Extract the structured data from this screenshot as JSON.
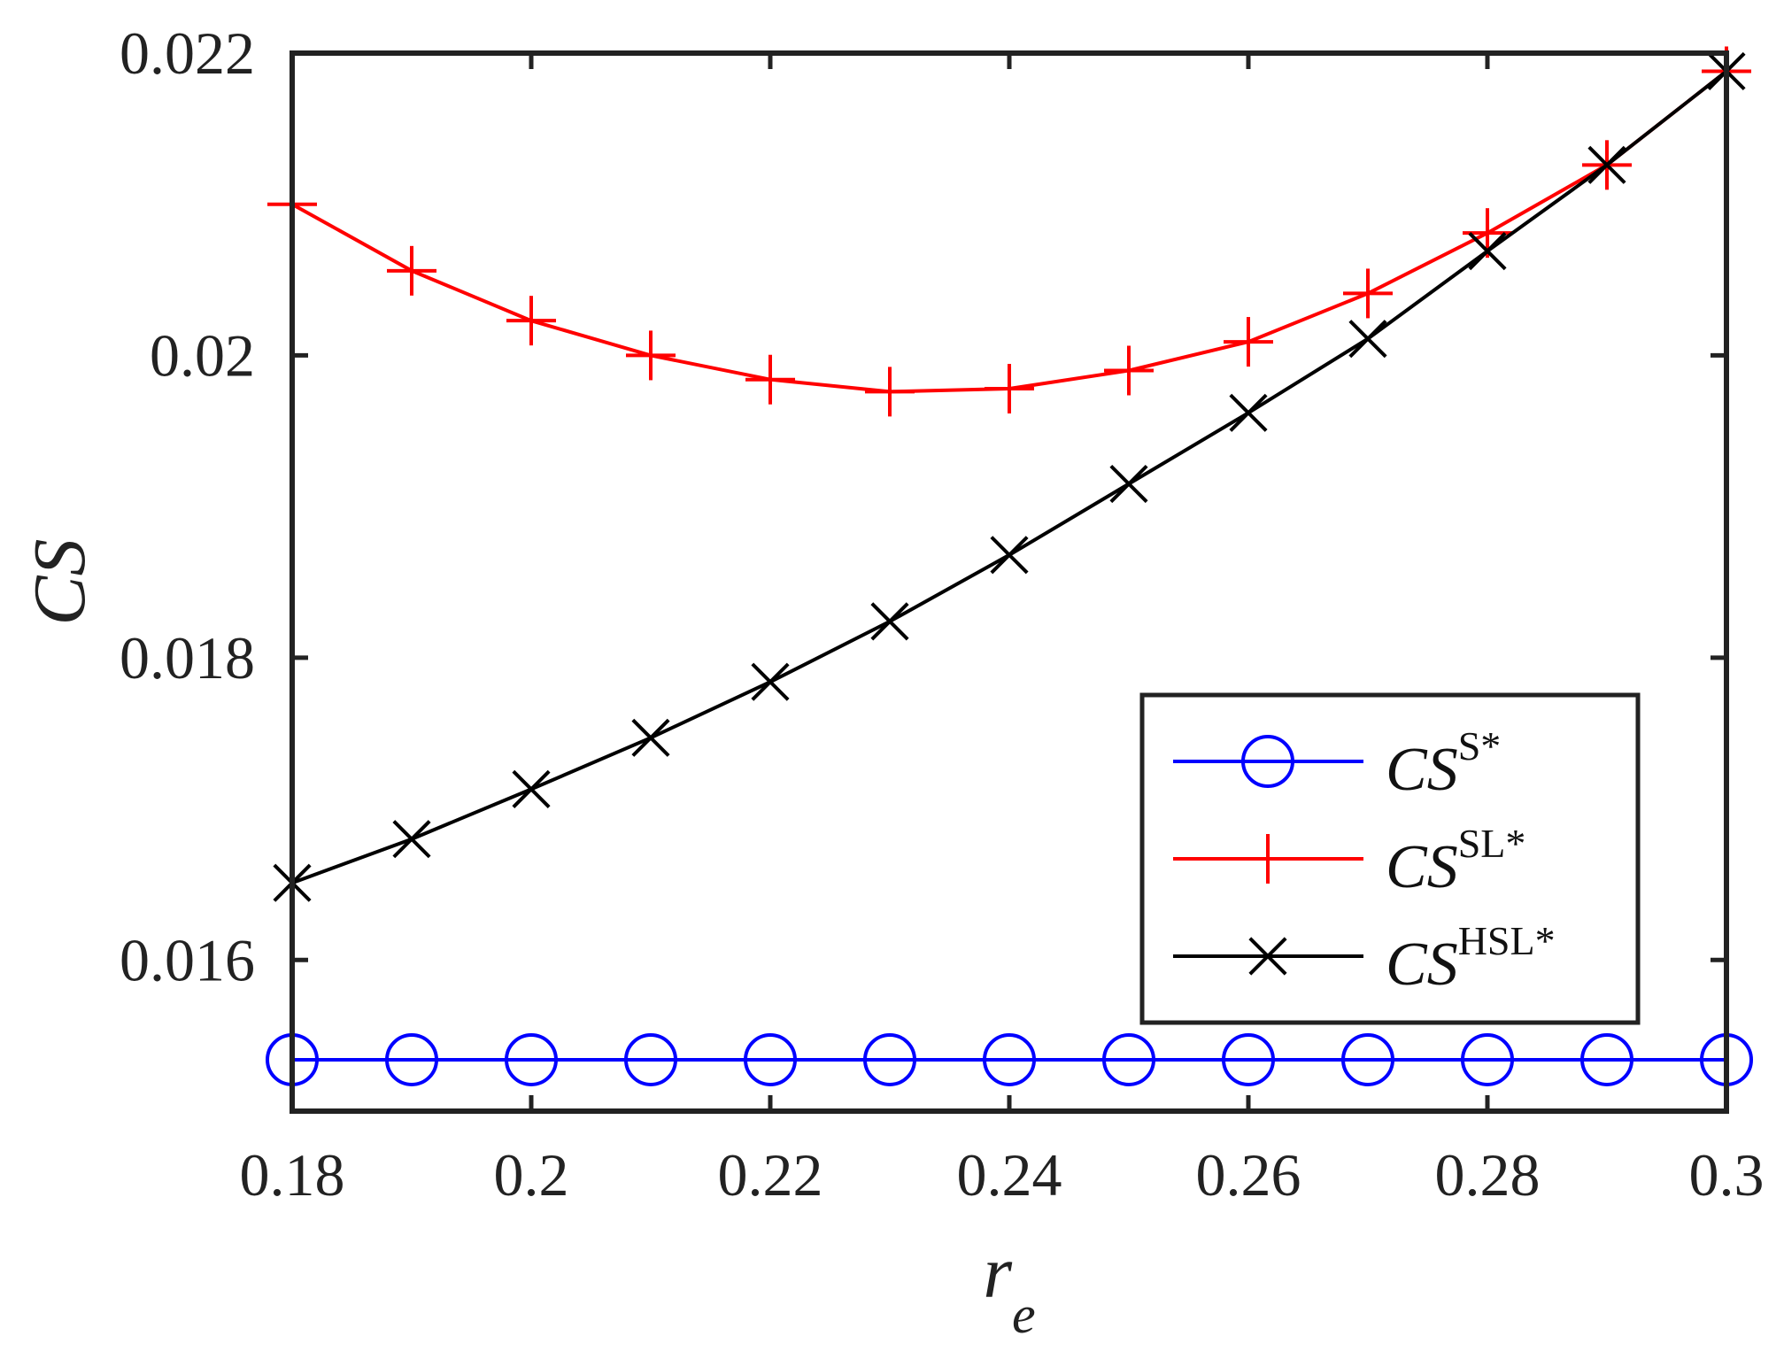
{
  "chart_data": {
    "type": "line",
    "title": "",
    "xlabel": "r",
    "xlabel_subscript": "e",
    "ylabel": "CS",
    "xlim": [
      0.18,
      0.3
    ],
    "ylim": [
      0.015,
      0.022
    ],
    "x_ticks": [
      {
        "value": 0.18,
        "label": "0.18"
      },
      {
        "value": 0.2,
        "label": "0.2"
      },
      {
        "value": 0.22,
        "label": "0.22"
      },
      {
        "value": 0.24,
        "label": "0.24"
      },
      {
        "value": 0.26,
        "label": "0.26"
      },
      {
        "value": 0.28,
        "label": "0.28"
      },
      {
        "value": 0.3,
        "label": "0.3"
      }
    ],
    "y_ticks": [
      {
        "value": 0.016,
        "label": "0.016"
      },
      {
        "value": 0.018,
        "label": "0.018"
      },
      {
        "value": 0.02,
        "label": "0.02"
      },
      {
        "value": 0.022,
        "label": "0.022"
      }
    ],
    "x": [
      0.18,
      0.19,
      0.2,
      0.21,
      0.22,
      0.23,
      0.24,
      0.25,
      0.26,
      0.27,
      0.28,
      0.29,
      0.3
    ],
    "series": [
      {
        "name": "CS^S*",
        "label_main": "CS",
        "label_sup": "S*",
        "color": "#0000ff",
        "marker": "circle",
        "values": [
          0.01534,
          0.01534,
          0.01534,
          0.01534,
          0.01534,
          0.01534,
          0.01534,
          0.01534,
          0.01534,
          0.01534,
          0.01534,
          0.01534,
          0.01534
        ]
      },
      {
        "name": "CS^SL*",
        "label_main": "CS",
        "label_sup": "SL*",
        "color": "#ff0000",
        "marker": "plus",
        "values": [
          0.021,
          0.02056,
          0.02023,
          0.02,
          0.01984,
          0.01976,
          0.01978,
          0.0199,
          0.02009,
          0.02041,
          0.02081,
          0.02126,
          0.02188
        ]
      },
      {
        "name": "CS^HSL*",
        "label_main": "CS",
        "label_sup": "HSL*",
        "color": "#000000",
        "marker": "x",
        "values": [
          0.01651,
          0.0168,
          0.01713,
          0.01747,
          0.01784,
          0.01824,
          0.01868,
          0.01915,
          0.01962,
          0.02011,
          0.02069,
          0.02126,
          0.02188
        ]
      }
    ],
    "legend_position": "bottom-right",
    "grid": false
  }
}
